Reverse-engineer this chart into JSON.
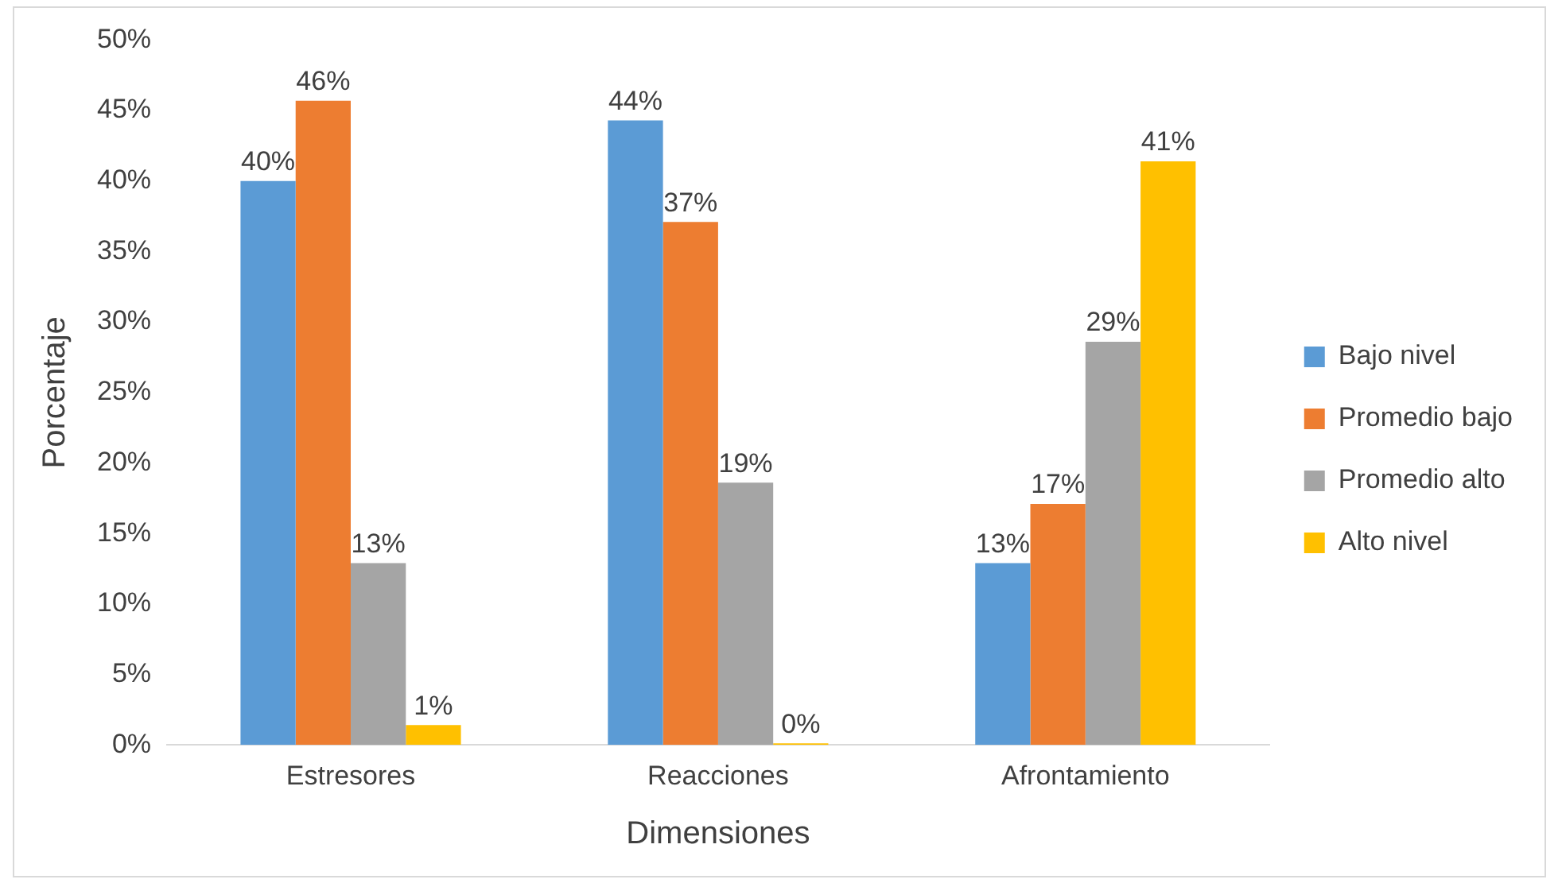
{
  "chart_data": {
    "type": "bar",
    "xlabel": "Dimensiones",
    "ylabel": "Porcentaje",
    "categories": [
      "Estresores",
      "Reacciones",
      "Afrontamiento"
    ],
    "series": [
      {
        "name": "Bajo nivel",
        "color": "#5b9bd5",
        "values": [
          40,
          44.3,
          12.9
        ],
        "value_labels": [
          "40%",
          "44%",
          "13%"
        ]
      },
      {
        "name": "Promedio bajo",
        "color": "#ed7d31",
        "values": [
          45.7,
          37.1,
          17.1
        ],
        "value_labels": [
          "46%",
          "37%",
          "17%"
        ]
      },
      {
        "name": "Promedio alto",
        "color": "#a5a5a5",
        "values": [
          12.9,
          18.6,
          28.6
        ],
        "value_labels": [
          "13%",
          "19%",
          "29%"
        ]
      },
      {
        "name": "Alto nivel",
        "color": "#ffc000",
        "values": [
          1.4,
          0,
          41.4
        ],
        "value_labels": [
          "1%",
          "0%",
          "41%"
        ]
      }
    ],
    "ylim": [
      0,
      50
    ],
    "yticks": [
      {
        "value": 0,
        "label": "0%"
      },
      {
        "value": 5,
        "label": "5%"
      },
      {
        "value": 10,
        "label": "10%"
      },
      {
        "value": 15,
        "label": "15%"
      },
      {
        "value": 20,
        "label": "20%"
      },
      {
        "value": 25,
        "label": "25%"
      },
      {
        "value": 30,
        "label": "30%"
      },
      {
        "value": 35,
        "label": "35%"
      },
      {
        "value": 40,
        "label": "40%"
      },
      {
        "value": 45,
        "label": "45%"
      },
      {
        "value": 50,
        "label": "50%"
      }
    ],
    "grid": false,
    "legend": "right"
  }
}
